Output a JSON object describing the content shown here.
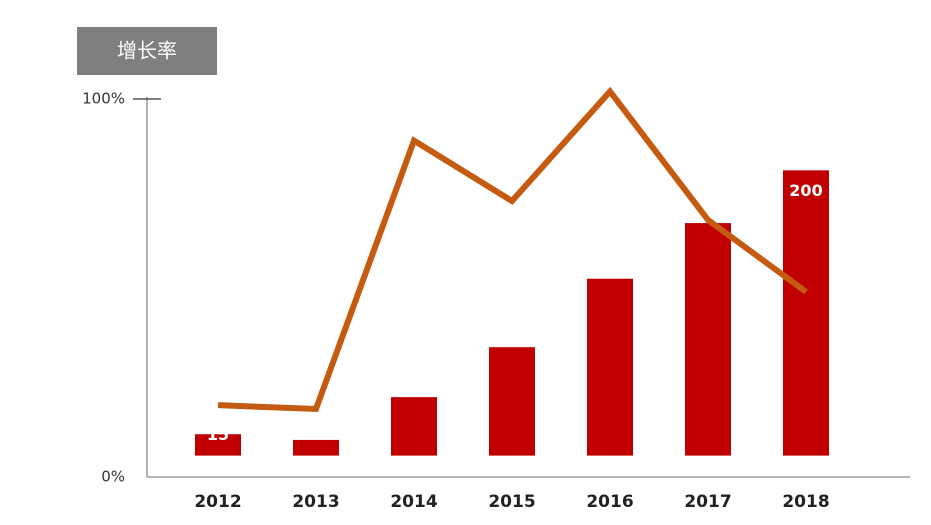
{
  "chart_data": {
    "type": "bar",
    "ylabel": "增长率",
    "categories": [
      "2012",
      "2013",
      "2014",
      "2015",
      "2016",
      "2017",
      "2018"
    ],
    "ylim": [
      0,
      100
    ],
    "yticks": [
      {
        "value": 0,
        "label": "0%"
      },
      {
        "value": 100,
        "label": "100%"
      }
    ],
    "y2lim": [
      -15,
      250
    ],
    "series": [
      {
        "type": "bar",
        "axis": "y2",
        "color": "#c00000",
        "values": [
          15,
          11,
          41,
          76,
          124,
          163,
          200
        ],
        "value_labels": [
          "15",
          null,
          null,
          null,
          null,
          null,
          "200"
        ]
      },
      {
        "type": "line",
        "color": "#c55a11",
        "values": [
          19,
          18,
          89,
          73,
          102,
          68,
          49
        ]
      }
    ]
  }
}
